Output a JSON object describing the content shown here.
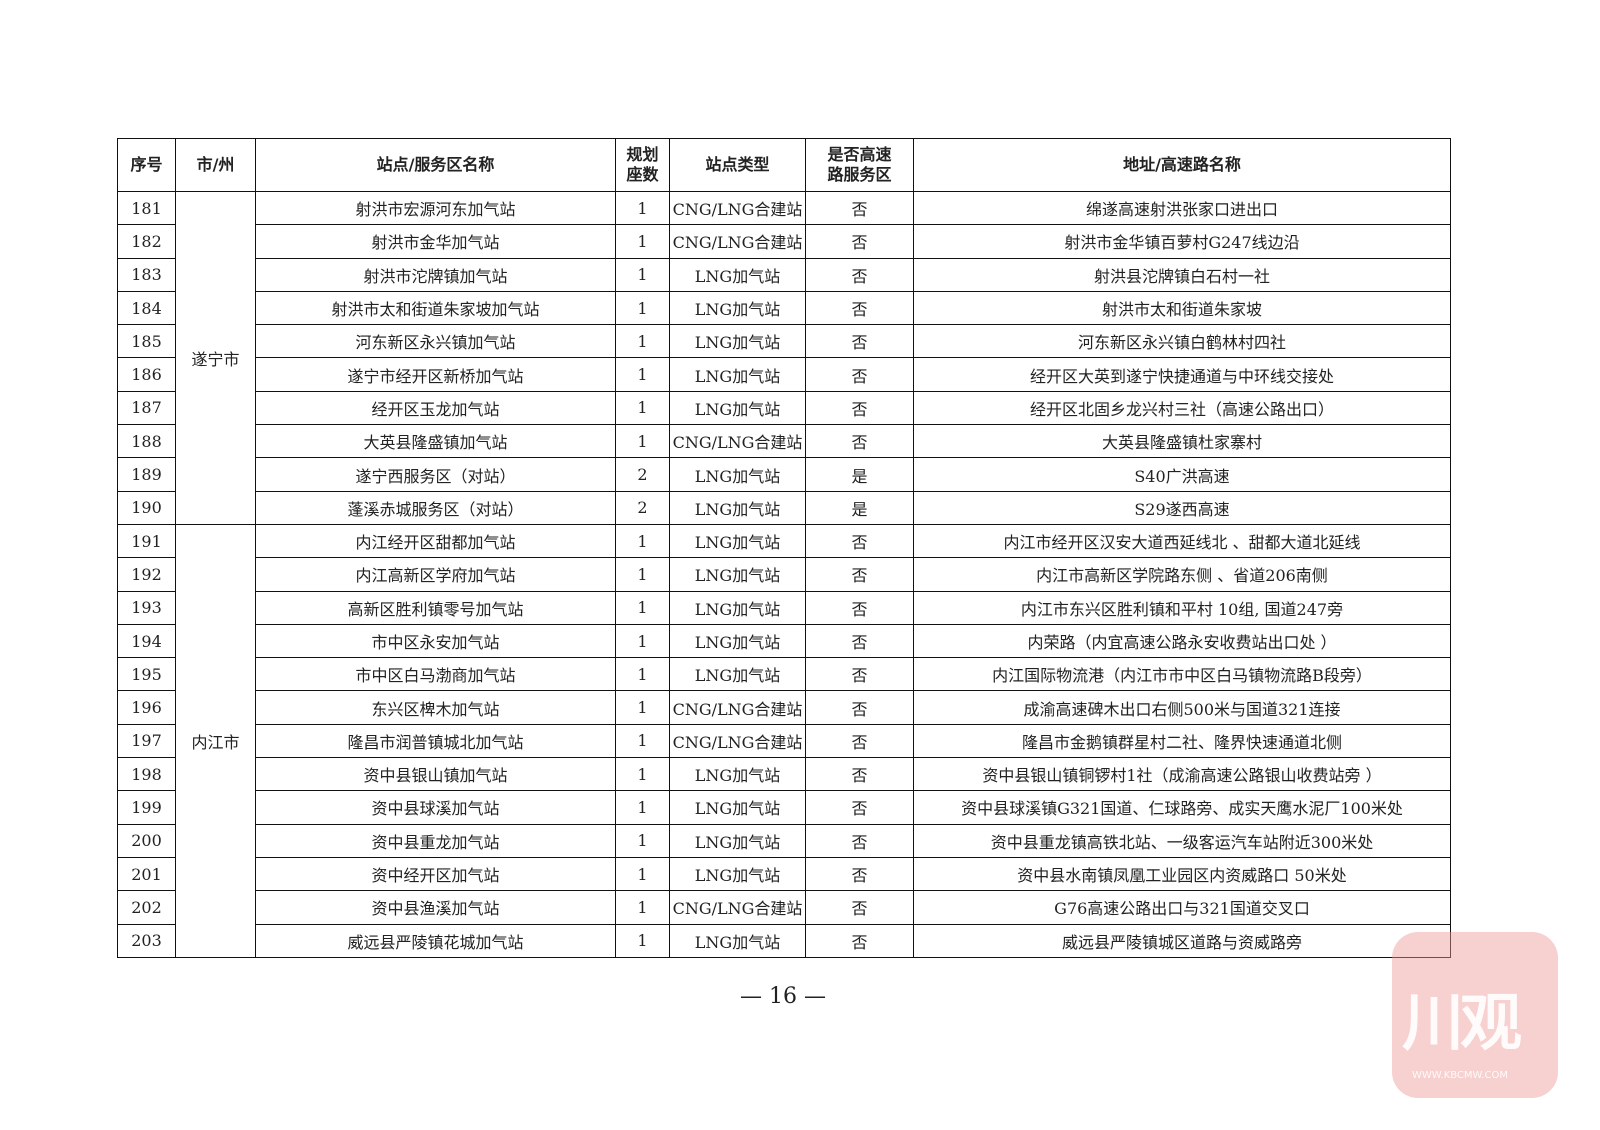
{
  "headers": [
    "序号",
    "市/州",
    "站点/服务区名称",
    "规划\n座数",
    "站点类型",
    "是否高速\n路服务区",
    "地址/高速路名称"
  ],
  "groups": [
    {
      "city": "遂宁市",
      "rows": [
        [
          "181",
          "射洪市宏源河东加气站",
          "1",
          "CNG/LNG合建站",
          "否",
          "绵遂高速射洪张家口进出口"
        ],
        [
          "182",
          "射洪市金华加气站",
          "1",
          "CNG/LNG合建站",
          "否",
          "射洪市金华镇百萝村G247线边沿"
        ],
        [
          "183",
          "射洪市沱牌镇加气站",
          "1",
          "LNG加气站",
          "否",
          "射洪县沱牌镇白石村一社"
        ],
        [
          "184",
          "射洪市太和街道朱家坡加气站",
          "1",
          "LNG加气站",
          "否",
          "射洪市太和街道朱家坡"
        ],
        [
          "185",
          "河东新区永兴镇加气站",
          "1",
          "LNG加气站",
          "否",
          "河东新区永兴镇白鹤林村四社"
        ],
        [
          "186",
          "遂宁市经开区新桥加气站",
          "1",
          "LNG加气站",
          "否",
          "经开区大英到遂宁快捷通道与中环线交接处"
        ],
        [
          "187",
          "经开区玉龙加气站",
          "1",
          "LNG加气站",
          "否",
          "经开区北固乡龙兴村三社（高速公路出口）"
        ],
        [
          "188",
          "大英县隆盛镇加气站",
          "1",
          "CNG/LNG合建站",
          "否",
          "大英县隆盛镇杜家寨村"
        ],
        [
          "189",
          "遂宁西服务区（对站）",
          "2",
          "LNG加气站",
          "是",
          "S40广洪高速"
        ],
        [
          "190",
          "蓬溪赤城服务区（对站）",
          "2",
          "LNG加气站",
          "是",
          "S29遂西高速"
        ]
      ]
    },
    {
      "city": "内江市",
      "rows": [
        [
          "191",
          "内江经开区甜都加气站",
          "1",
          "LNG加气站",
          "否",
          "内江市经开区汉安大道西延线北 、甜都大道北延线"
        ],
        [
          "192",
          "内江高新区学府加气站",
          "1",
          "LNG加气站",
          "否",
          "内江市高新区学院路东侧 、省道206南侧"
        ],
        [
          "193",
          "高新区胜利镇零号加气站",
          "1",
          "LNG加气站",
          "否",
          "内江市东兴区胜利镇和平村 10组, 国道247旁"
        ],
        [
          "194",
          "市中区永安加气站",
          "1",
          "LNG加气站",
          "否",
          "内荣路（内宜高速公路永安收费站出口处 ）"
        ],
        [
          "195",
          "市中区白马渤商加气站",
          "1",
          "LNG加气站",
          "否",
          "内江国际物流港（内江市市中区白马镇物流路B段旁）"
        ],
        [
          "196",
          "东兴区椑木加气站",
          "1",
          "CNG/LNG合建站",
          "否",
          "成渝高速碑木出口右侧500米与国道321连接"
        ],
        [
          "197",
          "隆昌市润普镇城北加气站",
          "1",
          "CNG/LNG合建站",
          "否",
          "隆昌市金鹅镇群星村二社、隆界快速通道北侧"
        ],
        [
          "198",
          "资中县银山镇加气站",
          "1",
          "LNG加气站",
          "否",
          "资中县银山镇铜锣村1社（成渝高速公路银山收费站旁 ）"
        ],
        [
          "199",
          "资中县球溪加气站",
          "1",
          "LNG加气站",
          "否",
          "资中县球溪镇G321国道、仁球路旁、成实天鹰水泥厂100米处"
        ],
        [
          "200",
          "资中县重龙加气站",
          "1",
          "LNG加气站",
          "否",
          "资中县重龙镇高铁北站、一级客运汽车站附近300米处"
        ],
        [
          "201",
          "资中经开区加气站",
          "1",
          "LNG加气站",
          "否",
          "资中县水南镇凤凰工业园区内资威路口 50米处"
        ],
        [
          "202",
          "资中县渔溪加气站",
          "1",
          "CNG/LNG合建站",
          "否",
          "G76高速公路出口与321国道交叉口"
        ],
        [
          "203",
          "威远县严陵镇花城加气站",
          "1",
          "LNG加气站",
          "否",
          "威远县严陵镇城区道路与资威路旁"
        ]
      ]
    }
  ],
  "page_number": "— 16 —",
  "watermark": {
    "text": "川观",
    "subtext": "WWW.KBCMW.COM",
    "color": "#ee9696"
  }
}
